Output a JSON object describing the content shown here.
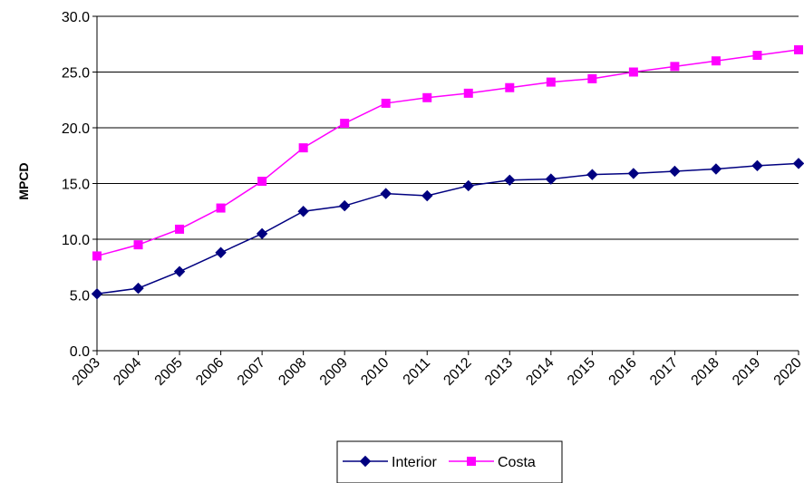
{
  "chart_data": {
    "type": "line",
    "title": "",
    "xlabel": "",
    "ylabel": "MPCD",
    "categories": [
      "2003",
      "2004",
      "2005",
      "2006",
      "2007",
      "2008",
      "2009",
      "2010",
      "2011",
      "2012",
      "2013",
      "2014",
      "2015",
      "2016",
      "2017",
      "2018",
      "2019",
      "2020"
    ],
    "ylim": [
      0,
      30
    ],
    "yticks": [
      "0.0",
      "5.0",
      "10.0",
      "15.0",
      "20.0",
      "25.0",
      "30.0"
    ],
    "grid": "horizontal",
    "legend_position": "bottom",
    "series": [
      {
        "name": "Interior",
        "color": "#000080",
        "marker": "diamond",
        "values": [
          5.1,
          5.6,
          7.1,
          8.8,
          10.5,
          12.5,
          13.0,
          14.1,
          13.9,
          14.8,
          15.3,
          15.4,
          15.8,
          15.9,
          16.1,
          16.3,
          16.6,
          16.8
        ]
      },
      {
        "name": "Costa",
        "color": "#FF00FF",
        "marker": "square",
        "values": [
          8.5,
          9.5,
          10.9,
          12.8,
          15.2,
          18.2,
          20.4,
          22.2,
          22.7,
          23.1,
          23.6,
          24.1,
          24.4,
          25.0,
          25.5,
          26.0,
          26.5,
          27.0
        ]
      }
    ]
  }
}
